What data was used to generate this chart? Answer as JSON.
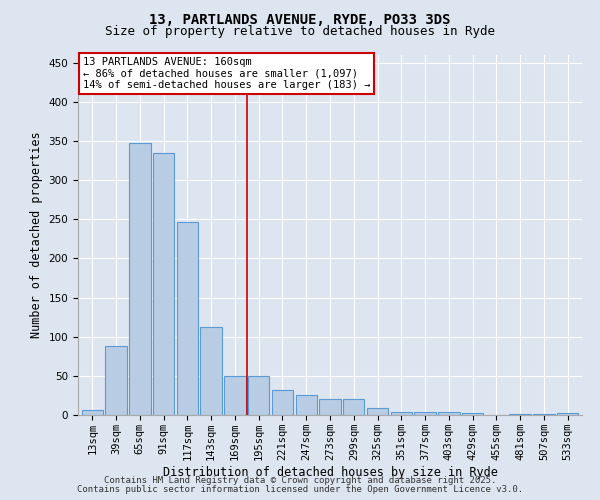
{
  "title_line1": "13, PARTLANDS AVENUE, RYDE, PO33 3DS",
  "title_line2": "Size of property relative to detached houses in Ryde",
  "xlabel": "Distribution of detached houses by size in Ryde",
  "ylabel": "Number of detached properties",
  "categories": [
    "13sqm",
    "39sqm",
    "65sqm",
    "91sqm",
    "117sqm",
    "143sqm",
    "169sqm",
    "195sqm",
    "221sqm",
    "247sqm",
    "273sqm",
    "299sqm",
    "325sqm",
    "351sqm",
    "377sqm",
    "403sqm",
    "429sqm",
    "455sqm",
    "481sqm",
    "507sqm",
    "533sqm"
  ],
  "values": [
    6,
    88,
    348,
    335,
    246,
    112,
    50,
    50,
    32,
    25,
    21,
    21,
    9,
    4,
    4,
    4,
    3,
    0,
    1,
    1,
    3
  ],
  "bar_color": "#b8cce4",
  "bar_edge_color": "#5b9bd5",
  "vline_x": 6.5,
  "vline_color": "#cc0000",
  "annotation_text": "13 PARTLANDS AVENUE: 160sqm\n← 86% of detached houses are smaller (1,097)\n14% of semi-detached houses are larger (183) →",
  "annotation_box_color": "#ffffff",
  "annotation_box_edge": "#cc0000",
  "ylim": [
    0,
    460
  ],
  "yticks": [
    0,
    50,
    100,
    150,
    200,
    250,
    300,
    350,
    400,
    450
  ],
  "bg_color": "#dde5f0",
  "footer_line1": "Contains HM Land Registry data © Crown copyright and database right 2025.",
  "footer_line2": "Contains public sector information licensed under the Open Government Licence v3.0.",
  "title_fontsize": 10,
  "subtitle_fontsize": 9,
  "axis_label_fontsize": 8.5,
  "tick_fontsize": 7.5,
  "annotation_fontsize": 7.5,
  "footer_fontsize": 6.5
}
